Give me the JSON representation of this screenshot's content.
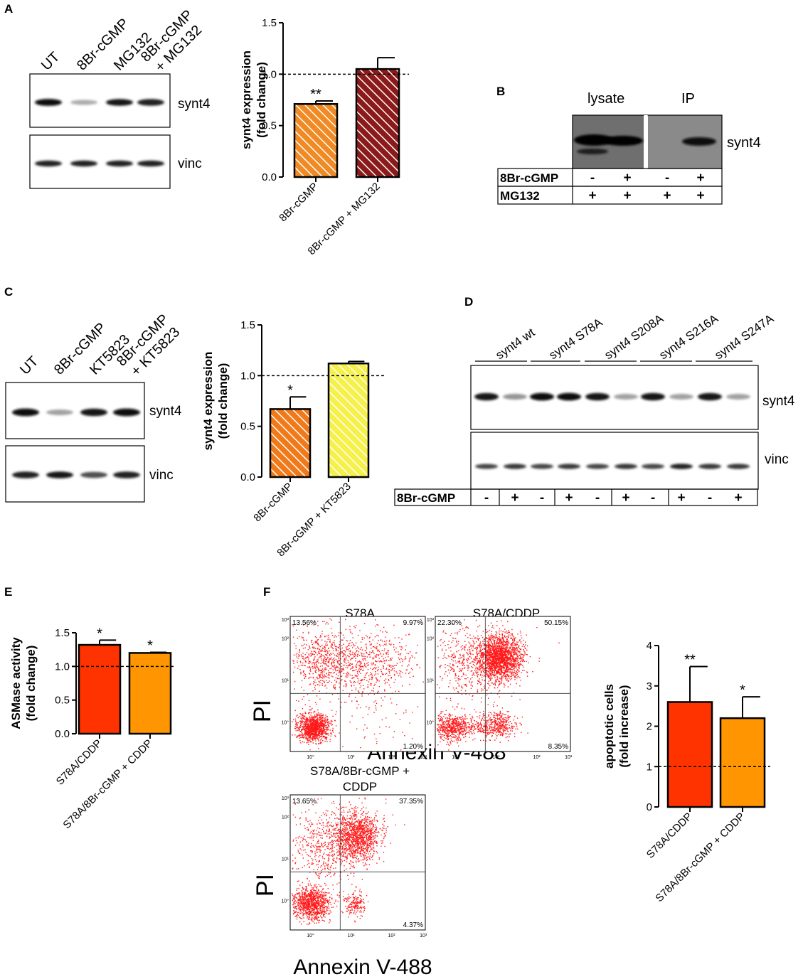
{
  "panels": {
    "A": "A",
    "B": "B",
    "C": "C",
    "D": "D",
    "E": "E",
    "F": "F"
  },
  "panelA": {
    "lanes": [
      "UT",
      "8Br-cGMP",
      "MG132",
      "8Br-cGMP"
    ],
    "lane4_line2": "+ MG132",
    "blot_labels": [
      "synt4",
      "vinc"
    ],
    "synt4_band_intensity": [
      0.95,
      0.25,
      0.9,
      0.85
    ],
    "vinc_band_intensity": [
      0.85,
      0.85,
      0.85,
      0.85
    ]
  },
  "panelB": {
    "headers": [
      "lysate",
      "IP"
    ],
    "blot_label": "synt4",
    "rows": [
      {
        "label": "8Br-cGMP",
        "values": [
          "-",
          "+",
          "-",
          "+"
        ]
      },
      {
        "label": "MG132",
        "values": [
          "+",
          "+",
          "+",
          "+"
        ]
      }
    ]
  },
  "panelC": {
    "lanes": [
      "UT",
      "8Br-cGMP",
      "KT5823",
      "8Br-cGMP"
    ],
    "lane4_line2": "+ KT5823",
    "blot_labels": [
      "synt4",
      "vinc"
    ],
    "synt4_band_intensity": [
      0.95,
      0.3,
      0.9,
      0.95
    ],
    "vinc_band_intensity": [
      0.85,
      0.9,
      0.65,
      0.85
    ]
  },
  "panelD": {
    "groups": [
      "synt4 wt",
      "synt4 S78A",
      "synt4 S208A",
      "synt4 S216A",
      "synt4 S247A"
    ],
    "blot_labels": [
      "synt4",
      "vinc"
    ],
    "row_label": "8Br-cGMP",
    "signs": [
      "-",
      "+",
      "-",
      "+",
      "-",
      "+",
      "-",
      "+",
      "-",
      "+"
    ],
    "synt4_band_intensity": [
      0.9,
      0.35,
      0.95,
      0.95,
      0.9,
      0.3,
      0.9,
      0.3,
      0.9,
      0.3
    ],
    "vinc_band_intensity": [
      0.7,
      0.75,
      0.7,
      0.75,
      0.7,
      0.75,
      0.7,
      0.85,
      0.75,
      0.75
    ]
  },
  "panelF": {
    "plots": [
      {
        "title": "S78A",
        "q_ul": "13.56%",
        "q_ur": "9.97%",
        "q_lr": "1.20%"
      },
      {
        "title": "S78A/CDDP",
        "q_ul": "22.30%",
        "q_ur": "50.15%",
        "q_lr": "8.35%"
      },
      {
        "title": "S78A/8Br-cGMP +",
        "title2": "CDDP",
        "q_ul": "13.65%",
        "q_ur": "37.35%",
        "q_lr": "4.37%"
      }
    ],
    "ylabel": "PI",
    "xlabel": "Annexin V-488",
    "ticks": [
      "10°",
      "10¹",
      "10²",
      "10³"
    ]
  },
  "chart_data": [
    {
      "id": "A",
      "type": "bar",
      "categories": [
        "8Br-cGMP",
        "8Br-cGMP + MG132"
      ],
      "values": [
        0.71,
        1.05
      ],
      "errors": [
        0.03,
        0.11
      ],
      "significance": [
        "**",
        ""
      ],
      "ylabel_line1": "synt4 expression",
      "ylabel_line2": "(fold change)",
      "ylim": [
        0,
        1.5
      ],
      "yticks": [
        "0.0",
        "0.5",
        "1.0",
        "1.5"
      ],
      "ytick_values": [
        0,
        0.5,
        1.0,
        1.5
      ],
      "reference_line": 1.0,
      "colors": [
        "#f08a24",
        "#8b1a1a"
      ],
      "hatched": [
        true,
        true
      ]
    },
    {
      "id": "C",
      "type": "bar",
      "categories": [
        "8Br-cGMP",
        "8Br-cGMP + KT5823"
      ],
      "values": [
        0.67,
        1.12
      ],
      "errors": [
        0.12,
        0.02
      ],
      "significance": [
        "*",
        ""
      ],
      "ylabel_line1": "synt4 expression",
      "ylabel_line2": "(fold change)",
      "ylim": [
        0,
        1.5
      ],
      "yticks": [
        "0.0",
        "0.5",
        "1.0",
        "1.5"
      ],
      "ytick_values": [
        0,
        0.5,
        1.0,
        1.5
      ],
      "reference_line": 1.0,
      "colors": [
        "#f07a1a",
        "#f5f04a"
      ],
      "hatched": [
        true,
        true
      ]
    },
    {
      "id": "E",
      "type": "bar",
      "categories": [
        "S78A/CDDP",
        "S78A/8Br-cGMP + CDDP"
      ],
      "values": [
        1.32,
        1.2
      ],
      "errors": [
        0.07,
        0.01
      ],
      "significance": [
        "*",
        "*"
      ],
      "ylabel_line1": "ASMase activity",
      "ylabel_line2": "(fold change)",
      "ylim": [
        0,
        1.5
      ],
      "yticks": [
        "0.0",
        "0.5",
        "1.0",
        "1.5"
      ],
      "ytick_values": [
        0,
        0.5,
        1.0,
        1.5
      ],
      "reference_line": 1.0,
      "colors": [
        "#ff3300",
        "#ff9500"
      ],
      "hatched": [
        false,
        false
      ]
    },
    {
      "id": "F",
      "type": "bar",
      "categories": [
        "S78A/CDDP",
        "S78A/8Br-cGMP + CDDP"
      ],
      "values": [
        2.6,
        2.2
      ],
      "errors": [
        0.88,
        0.53
      ],
      "significance": [
        "**",
        "*"
      ],
      "ylabel_line1": "apoptotic cells",
      "ylabel_line2": "(fold increase)",
      "ylim": [
        0,
        4
      ],
      "yticks": [
        "0",
        "1",
        "2",
        "3",
        "4"
      ],
      "ytick_values": [
        0,
        1,
        2,
        3,
        4
      ],
      "reference_line": 1.0,
      "colors": [
        "#ff3300",
        "#ff9500"
      ],
      "hatched": [
        false,
        false
      ]
    }
  ]
}
